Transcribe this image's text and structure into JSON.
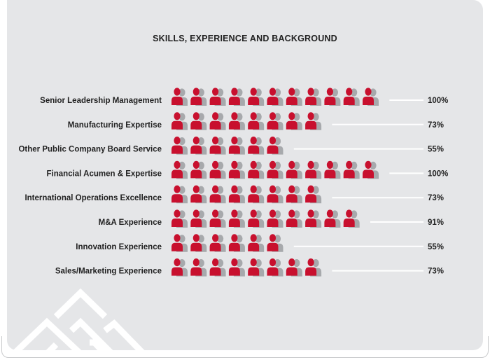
{
  "chart_data": {
    "type": "pictograph",
    "title": "SKILLS, EXPERIENCE AND BACKGROUND",
    "icon": "person-icon",
    "total_icons": 11,
    "colors": {
      "filled": "#c8102e",
      "shadow": "#a7a9ac",
      "line": "#ffffff"
    },
    "categories": [
      "Senior Leadership Management",
      "Manufacturing Expertise",
      "Other Public Company Board Service",
      "Financial Acumen & Expertise",
      "International Operations Excellence",
      "M&A Experience",
      "Innovation Experience",
      "Sales/Marketing Experience"
    ],
    "icon_counts": [
      11,
      8,
      6,
      11,
      8,
      10,
      6,
      8
    ],
    "values": [
      100,
      73,
      55,
      100,
      73,
      91,
      55,
      73
    ],
    "value_labels": [
      "100%",
      "73%",
      "55%",
      "100%",
      "73%",
      "91%",
      "55%",
      "73%"
    ]
  }
}
